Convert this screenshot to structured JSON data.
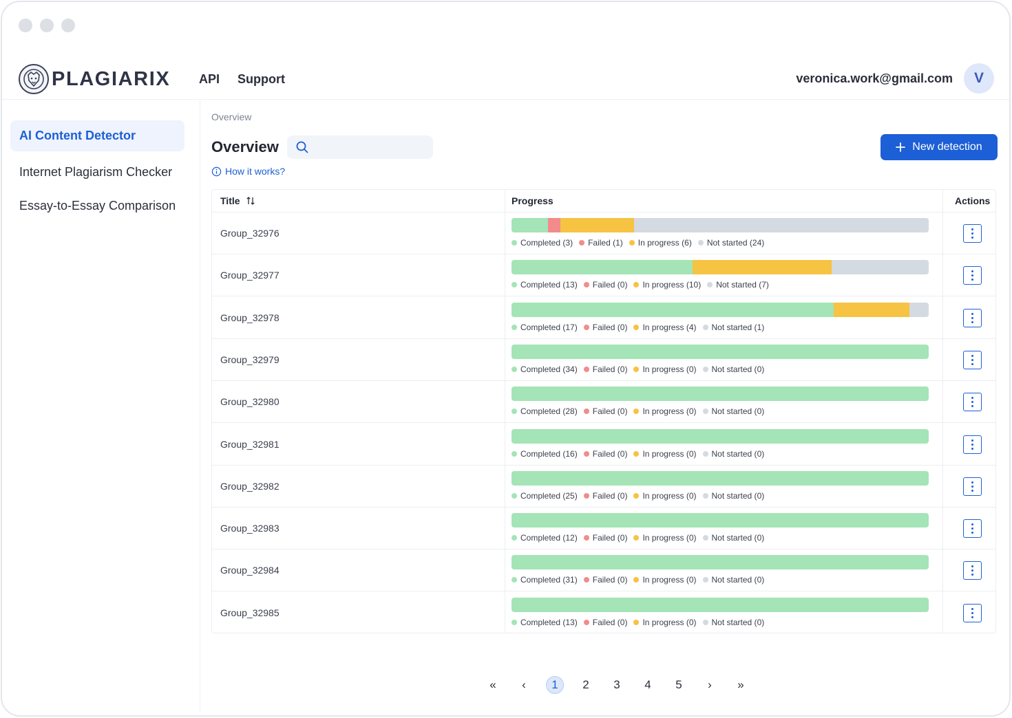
{
  "header": {
    "brand": "PLAGIARIX",
    "nav": [
      "API",
      "Support"
    ],
    "user_email": "veronica.work@gmail.com",
    "avatar_initial": "V"
  },
  "sidebar": {
    "items": [
      {
        "label": "AI Content Detector",
        "active": true
      },
      {
        "label": "Internet Plagiarism Checker",
        "active": false
      },
      {
        "label": "Essay-to-Essay Comparison",
        "active": false
      }
    ]
  },
  "main": {
    "breadcrumb": "Overview",
    "title": "Overview",
    "search_placeholder": "",
    "how_it_works": "How it works?",
    "new_button": "New detection"
  },
  "table": {
    "columns": {
      "title": "Title",
      "progress": "Progress",
      "actions": "Actions"
    },
    "status_labels": {
      "completed": "Completed",
      "failed": "Failed",
      "in_progress": "In progress",
      "not_started": "Not started"
    },
    "rows": [
      {
        "title": "Group_32976",
        "completed": 3,
        "failed": 1,
        "in_progress": 6,
        "not_started": 24
      },
      {
        "title": "Group_32977",
        "completed": 13,
        "failed": 0,
        "in_progress": 10,
        "not_started": 7
      },
      {
        "title": "Group_32978",
        "completed": 17,
        "failed": 0,
        "in_progress": 4,
        "not_started": 1
      },
      {
        "title": "Group_32979",
        "completed": 34,
        "failed": 0,
        "in_progress": 0,
        "not_started": 0
      },
      {
        "title": "Group_32980",
        "completed": 28,
        "failed": 0,
        "in_progress": 0,
        "not_started": 0
      },
      {
        "title": "Group_32981",
        "completed": 16,
        "failed": 0,
        "in_progress": 0,
        "not_started": 0
      },
      {
        "title": "Group_32982",
        "completed": 25,
        "failed": 0,
        "in_progress": 0,
        "not_started": 0
      },
      {
        "title": "Group_32983",
        "completed": 12,
        "failed": 0,
        "in_progress": 0,
        "not_started": 0
      },
      {
        "title": "Group_32984",
        "completed": 31,
        "failed": 0,
        "in_progress": 0,
        "not_started": 0
      },
      {
        "title": "Group_32985",
        "completed": 13,
        "failed": 0,
        "in_progress": 0,
        "not_started": 0
      }
    ]
  },
  "colors": {
    "completed": "#a4e4b6",
    "failed": "#f28b8b",
    "in_progress": "#f6c342",
    "not_started": "#d3dae2",
    "accent": "#1c5fd6"
  },
  "pagination": {
    "pages": [
      "1",
      "2",
      "3",
      "4",
      "5"
    ],
    "current": "1",
    "first": "«",
    "prev": "‹",
    "next": "›",
    "last": "»"
  },
  "icons": {
    "logo": "lion-logo-icon",
    "search": "search-icon",
    "info": "info-icon",
    "plus": "plus-icon",
    "sort": "sort-icon",
    "actions": "kebab-menu-icon"
  }
}
